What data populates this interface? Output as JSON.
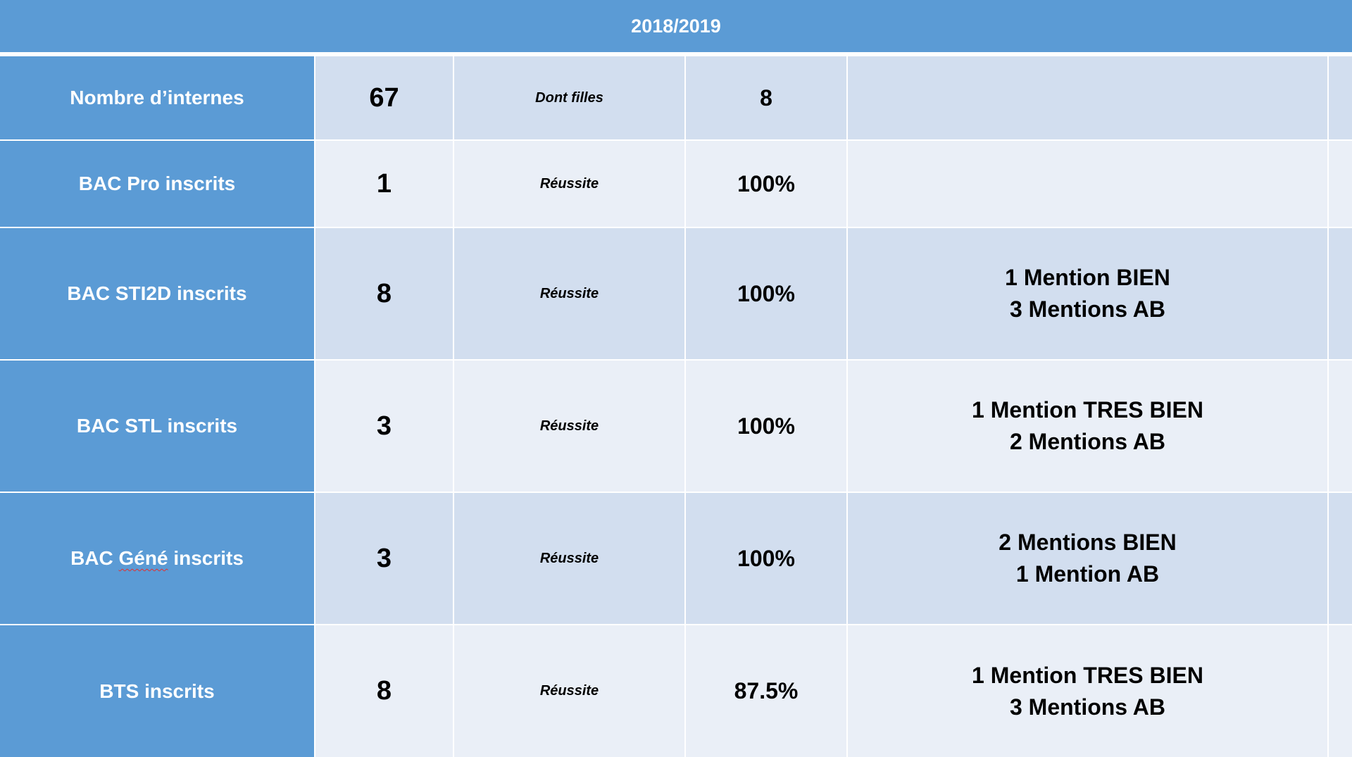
{
  "header": {
    "title": "2018/2019"
  },
  "rows": [
    {
      "label_pre": "Nombre d’internes",
      "label_flag": "",
      "label_post": "",
      "count": "67",
      "metric": "Dont filles",
      "value": "8",
      "mentions": [
        "",
        ""
      ]
    },
    {
      "label_pre": "BAC Pro inscrits",
      "label_flag": "",
      "label_post": "",
      "count": "1",
      "metric": "Réussite",
      "value": "100%",
      "mentions": [
        "",
        ""
      ]
    },
    {
      "label_pre": "BAC STI2D inscrits",
      "label_flag": "",
      "label_post": "",
      "count": "8",
      "metric": "Réussite",
      "value": "100%",
      "mentions": [
        "1 Mention BIEN",
        "3 Mentions AB"
      ]
    },
    {
      "label_pre": "BAC STL inscrits",
      "label_flag": "",
      "label_post": "",
      "count": "3",
      "metric": "Réussite",
      "value": "100%",
      "mentions": [
        "1 Mention TRES BIEN",
        "2 Mentions AB"
      ]
    },
    {
      "label_pre": "BAC ",
      "label_flag": "Géné",
      "label_post": " inscrits",
      "count": "3",
      "metric": "Réussite",
      "value": "100%",
      "mentions": [
        "2 Mentions BIEN",
        "1 Mention AB"
      ]
    },
    {
      "label_pre": "BTS inscrits",
      "label_flag": "",
      "label_post": "",
      "count": "8",
      "metric": "Réussite",
      "value": "87.5%",
      "mentions": [
        "1 Mention TRES BIEN",
        "3 Mentions AB"
      ]
    }
  ]
}
